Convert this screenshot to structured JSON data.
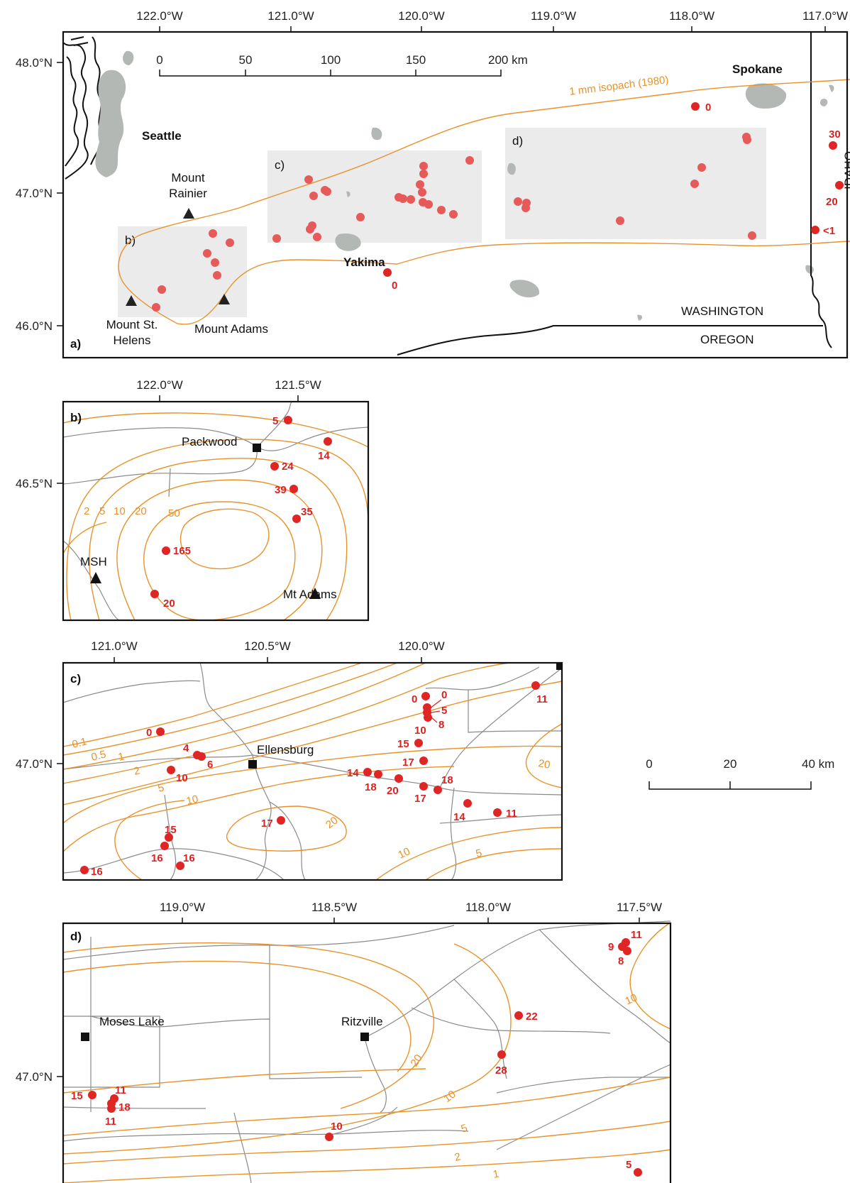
{
  "colors": {
    "sample": "#e02525",
    "isopach": "#e8922a",
    "road": "#8a8a8a",
    "water": "#b4b8b4",
    "box": "#d9dbd9"
  },
  "panel_a": {
    "label": "a)",
    "lon_ticks": [
      "122.0°W",
      "121.0°W",
      "120.0°W",
      "119.0°W",
      "118.0°W",
      "117.0°W"
    ],
    "lat_ticks": [
      "48.0°N",
      "47.0°N",
      "46.0°N"
    ],
    "scale": {
      "labels": [
        "0",
        "50",
        "100",
        "150",
        "200 km"
      ]
    },
    "isopach_label": "1 mm isopach (1980)",
    "places": {
      "seattle": "Seattle",
      "spokane": "Spokane",
      "yakima": "Yakima",
      "idaho": "IDAHO",
      "washington": "WASHINGTON",
      "oregon": "OREGON",
      "rainier_1": "Mount",
      "rainier_2": "Rainier",
      "sth_1": "Mount St.",
      "sth_2": "Helens",
      "adams": "Mount Adams"
    },
    "boxes": [
      "b)",
      "c)",
      "d)"
    ],
    "values": {
      "spokane": "0",
      "yakima": "0",
      "id1": "30",
      "id2": "20",
      "id3": "<1"
    }
  },
  "panel_b": {
    "label": "b)",
    "lon_ticks": [
      "122.0°W",
      "121.5°W"
    ],
    "lat_ticks": [
      "46.5°N"
    ],
    "places": {
      "packwood": "Packwood",
      "msh": "MSH",
      "adams": "Mt Adams"
    },
    "contours": [
      "2",
      "5",
      "10",
      "20",
      "50"
    ],
    "values": [
      "5",
      "14",
      "24",
      "39",
      "35",
      "165",
      "20"
    ]
  },
  "panel_c": {
    "label": "c)",
    "lon_ticks": [
      "121.0°W",
      "120.5°W",
      "120.0°W"
    ],
    "lat_ticks": [
      "47.0°N"
    ],
    "places": {
      "ellensburg": "Ellensburg"
    },
    "contours": [
      "0.1",
      "0.5",
      "1",
      "2",
      "5",
      "10",
      "20",
      "10",
      "5",
      "20"
    ],
    "values": [
      "0",
      "0",
      "5",
      "8",
      "10",
      "15",
      "17",
      "11",
      "0",
      "4",
      "6",
      "10",
      "14",
      "18",
      "20",
      "17",
      "18",
      "14",
      "11",
      "17",
      "15",
      "16",
      "16",
      "16"
    ]
  },
  "scale_c": {
    "labels": [
      "0",
      "20",
      "40 km"
    ]
  },
  "panel_d": {
    "label": "d)",
    "lon_ticks": [
      "119.0°W",
      "118.5°W",
      "118.0°W",
      "117.5°W"
    ],
    "lat_ticks": [
      "47.0°N"
    ],
    "places": {
      "moses": "Moses Lake",
      "ritzville": "Ritzville"
    },
    "contours": [
      "10",
      "20",
      "10",
      "5",
      "2",
      "1"
    ],
    "values": [
      "11",
      "9",
      "8",
      "22",
      "28",
      "15",
      "11",
      "18",
      "11",
      "10",
      "5"
    ]
  }
}
